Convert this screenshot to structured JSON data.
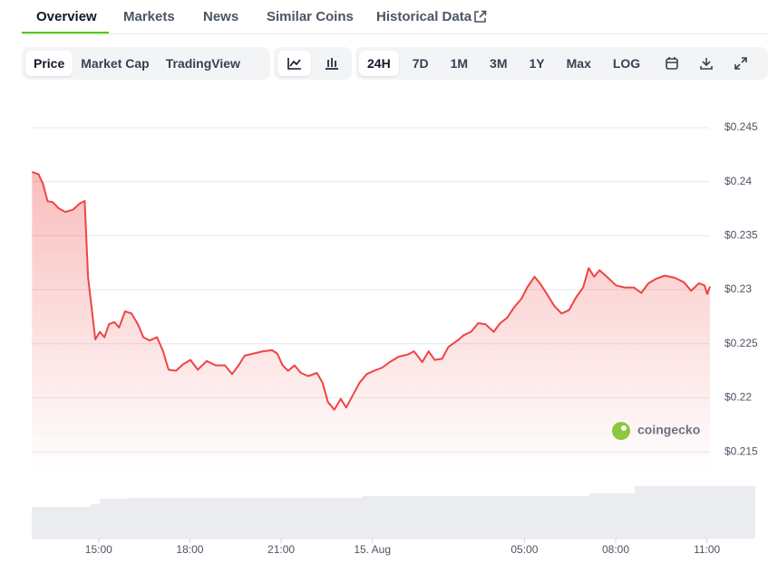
{
  "tabs": [
    "Overview",
    "Markets",
    "News",
    "Similar Coins",
    "Historical Data"
  ],
  "toolbar": {
    "views": [
      "Price",
      "Market Cap",
      "TradingView"
    ],
    "ranges": [
      "24H",
      "7D",
      "1M",
      "3M",
      "1Y",
      "Max",
      "LOG"
    ]
  },
  "watermark": "coingecko",
  "chart_data": {
    "type": "line",
    "color": "#ef4444",
    "x": [
      -11.19,
      -10.98,
      -10.83,
      -10.68,
      -10.51,
      -10.3,
      -10.09,
      -9.85,
      -9.61,
      -9.46,
      -9.35,
      -9.23,
      -9.11,
      -8.96,
      -8.81,
      -8.66,
      -8.48,
      -8.33,
      -8.13,
      -7.92,
      -7.71,
      -7.53,
      -7.32,
      -7.08,
      -6.88,
      -6.7,
      -6.46,
      -6.22,
      -5.98,
      -5.74,
      -5.45,
      -5.15,
      -4.85,
      -4.61,
      -4.4,
      -4.2,
      -3.9,
      -3.6,
      -3.3,
      -3.13,
      -2.95,
      -2.77,
      -2.56,
      -2.35,
      -2.11,
      -1.82,
      -1.64,
      -1.46,
      -1.25,
      -1.04,
      -0.86,
      -0.63,
      -0.42,
      -0.18,
      0.06,
      0.33,
      0.57,
      0.86,
      1.16,
      1.37,
      1.64,
      1.85,
      2.05,
      2.29,
      2.5,
      2.8,
      3.01,
      3.24,
      3.48,
      3.72,
      3.99,
      4.2,
      4.43,
      4.67,
      4.91,
      5.09,
      5.33,
      5.51,
      5.74,
      5.98,
      6.22,
      6.46,
      6.7,
      6.93,
      7.11,
      7.29,
      7.47,
      7.71,
      8.01,
      8.3,
      8.6,
      8.84,
      9.08,
      9.32,
      9.61,
      9.94,
      10.24,
      10.48,
      10.74,
      10.92,
      11.01,
      11.1
    ],
    "values": [
      0.2409,
      0.2407,
      0.2398,
      0.2382,
      0.2381,
      0.2375,
      0.2372,
      0.2374,
      0.238,
      0.2382,
      0.2312,
      0.2283,
      0.2254,
      0.2261,
      0.2256,
      0.2268,
      0.227,
      0.2265,
      0.228,
      0.2278,
      0.2268,
      0.2256,
      0.2253,
      0.2256,
      0.2243,
      0.2226,
      0.2225,
      0.2231,
      0.2235,
      0.2226,
      0.2234,
      0.223,
      0.223,
      0.2222,
      0.223,
      0.2239,
      0.2241,
      0.2243,
      0.2244,
      0.2241,
      0.223,
      0.2225,
      0.223,
      0.2223,
      0.222,
      0.2223,
      0.2214,
      0.2196,
      0.2189,
      0.2199,
      0.2191,
      0.2203,
      0.2214,
      0.2222,
      0.2225,
      0.2228,
      0.2233,
      0.2238,
      0.224,
      0.2243,
      0.2233,
      0.2243,
      0.2235,
      0.2236,
      0.2247,
      0.2253,
      0.2258,
      0.2261,
      0.2269,
      0.2268,
      0.2261,
      0.2269,
      0.2274,
      0.2284,
      0.2292,
      0.2302,
      0.2312,
      0.2306,
      0.2296,
      0.2285,
      0.2278,
      0.2281,
      0.2293,
      0.2302,
      0.232,
      0.2312,
      0.2318,
      0.2312,
      0.2304,
      0.2302,
      0.2302,
      0.2297,
      0.2306,
      0.231,
      0.2313,
      0.2311,
      0.2307,
      0.2299,
      0.2306,
      0.2304,
      0.2296,
      0.2303
    ],
    "xlim": [
      -11.2,
      11.1
    ],
    "xticks": [
      {
        "value": -9,
        "label": "15:00"
      },
      {
        "value": -6,
        "label": "18:00"
      },
      {
        "value": -3,
        "label": "21:00"
      },
      {
        "value": 0,
        "label": "15. Aug"
      },
      {
        "value": 5,
        "label": "05:00"
      },
      {
        "value": 8,
        "label": "08:00"
      },
      {
        "value": 11,
        "label": "11:00"
      }
    ],
    "ylim": [
      0.213,
      0.246
    ],
    "yticks": [
      {
        "value": 0.215,
        "label": "$0.215"
      },
      {
        "value": 0.22,
        "label": "$0.22"
      },
      {
        "value": 0.225,
        "label": "$0.225"
      },
      {
        "value": 0.23,
        "label": "$0.23"
      },
      {
        "value": 0.235,
        "label": "$0.235"
      },
      {
        "value": 0.24,
        "label": "$0.24"
      },
      {
        "value": 0.245,
        "label": "$0.245"
      }
    ],
    "grid": true
  }
}
